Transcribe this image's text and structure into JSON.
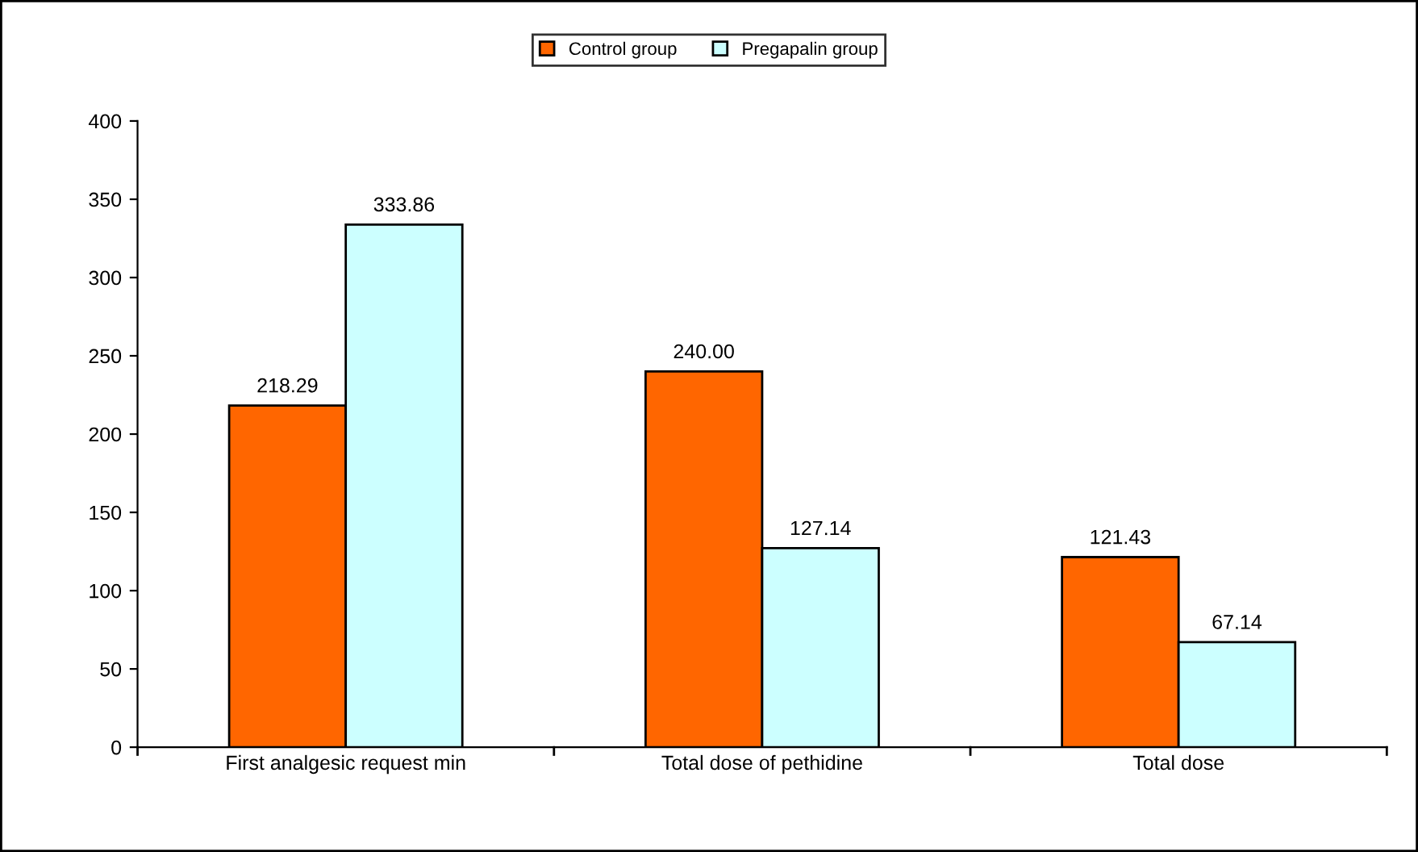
{
  "chart_data": {
    "type": "bar",
    "categories": [
      "First analgesic request min",
      "Total dose of pethidine",
      "Total dose"
    ],
    "series": [
      {
        "name": "Control group",
        "color": "#ff6600",
        "values": [
          218.29,
          240.0,
          121.43
        ],
        "value_labels": [
          "218.29",
          "240.00",
          "121.43"
        ]
      },
      {
        "name": "Pregapalin group",
        "color": "#ccffff",
        "values": [
          333.86,
          127.14,
          67.14
        ],
        "value_labels": [
          "333.86",
          "127.14",
          "67.14"
        ]
      }
    ],
    "ylim": [
      0,
      400
    ],
    "yticks": [
      0,
      50,
      100,
      150,
      200,
      250,
      300,
      350,
      400
    ],
    "grid": false,
    "legend": "top"
  }
}
